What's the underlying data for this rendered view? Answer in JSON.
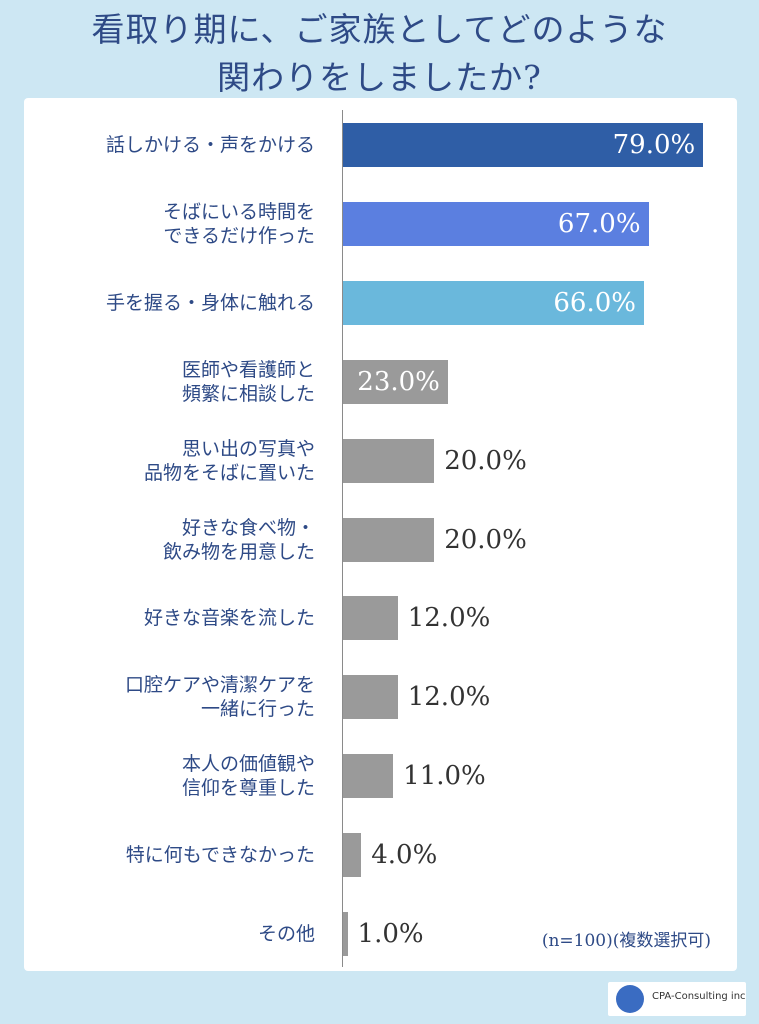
{
  "title": {
    "line1": "看取り期に、ご家族としてどのような",
    "line2": "関わりをしましたか?"
  },
  "note": "(n=100)(複数選択可)",
  "logo": {
    "text": "CPA-Consulting inc"
  },
  "chart_data": {
    "type": "bar",
    "orientation": "horizontal",
    "xlim": [
      0,
      100
    ],
    "categories": [
      [
        "話しかける・声をかける"
      ],
      [
        "そばにいる時間を",
        "できるだけ作った"
      ],
      [
        "手を握る・身体に触れる"
      ],
      [
        "医師や看護師と",
        "頻繁に相談した"
      ],
      [
        "思い出の写真や",
        "品物をそばに置いた"
      ],
      [
        "好きな食べ物・",
        "飲み物を用意した"
      ],
      [
        "好きな音楽を流した"
      ],
      [
        "口腔ケアや清潔ケアを",
        "一緒に行った"
      ],
      [
        "本人の価値観や",
        "信仰を尊重した"
      ],
      [
        "特に何もできなかった"
      ],
      [
        "その他"
      ]
    ],
    "values": [
      79.0,
      67.0,
      66.0,
      23.0,
      20.0,
      20.0,
      12.0,
      12.0,
      11.0,
      4.0,
      1.0
    ],
    "labels": [
      "79.0%",
      "67.0%",
      "66.0%",
      "23.0%",
      "20.0%",
      "20.0%",
      "12.0%",
      "12.0%",
      "11.0%",
      "4.0%",
      "1.0%"
    ],
    "colors": [
      "#2f5ea6",
      "#5b7fe0",
      "#6ab8dc",
      "#9a9a9a",
      "#9a9a9a",
      "#9a9a9a",
      "#9a9a9a",
      "#9a9a9a",
      "#9a9a9a",
      "#9a9a9a",
      "#9a9a9a"
    ],
    "label_inside": [
      true,
      true,
      true,
      true,
      false,
      false,
      false,
      false,
      false,
      false,
      false
    ]
  }
}
